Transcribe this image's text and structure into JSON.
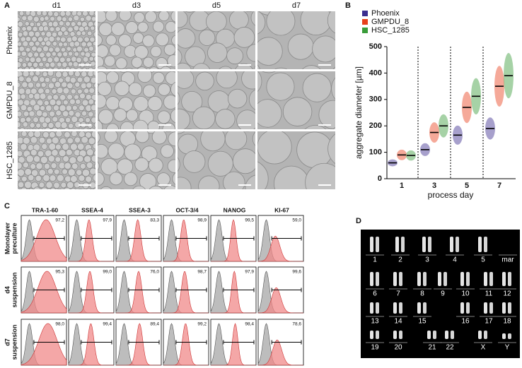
{
  "panel_a": {
    "label": "A",
    "columns": [
      "d1",
      "d3",
      "d5",
      "d7"
    ],
    "rows": [
      "Phoenix",
      "GMPDU_8",
      "HSC_1285"
    ]
  },
  "chart_data": {
    "type": "strip",
    "label": "B",
    "categories": [
      "1",
      "3",
      "5",
      "7"
    ],
    "series": [
      {
        "name": "Phoenix",
        "color": "#3b2d8f",
        "values": [
          60,
          110,
          165,
          190
        ]
      },
      {
        "name": "GMPDU_8",
        "color": "#e8401c",
        "values": [
          90,
          175,
          270,
          350
        ]
      },
      {
        "name": "HSC_1285",
        "color": "#3a9c3a",
        "values": [
          88,
          200,
          312,
          390
        ]
      }
    ],
    "ylim": [
      0,
      500
    ],
    "yticks": [
      0,
      100,
      200,
      300,
      400,
      500
    ],
    "y_label": "aggregate diameter [µm]",
    "x_label": "process day"
  },
  "panel_c": {
    "label": "C",
    "markers": [
      "TRA-1-60",
      "SSEA-4",
      "SSEA-3",
      "OCT-3/4",
      "NANOG",
      "KI-67"
    ],
    "rows": [
      {
        "lines": [
          "Monolayer",
          "preculture"
        ],
        "values": [
          "97,2",
          "97,9",
          "83,3",
          "98,9",
          "99,5",
          "59,0"
        ]
      },
      {
        "lines": [
          "d4",
          "suspension"
        ],
        "values": [
          "95,3",
          "99,0",
          "76,0",
          "98,7",
          "97,9",
          "99,6"
        ]
      },
      {
        "lines": [
          "d7",
          "suspension"
        ],
        "values": [
          "98,0",
          "99,4",
          "89,4",
          "99,2",
          "98,4",
          "78,6"
        ]
      }
    ]
  },
  "panel_d": {
    "label": "D",
    "rows": [
      [
        "1",
        "2",
        "3",
        "4",
        "5",
        "mar"
      ],
      [
        "6",
        "7",
        "8",
        "9",
        "10",
        "11",
        "12"
      ],
      [
        "13",
        "14",
        "15",
        "16",
        "17",
        "18"
      ],
      [
        "19",
        "20",
        "21",
        "22",
        "X",
        "Y"
      ]
    ]
  }
}
